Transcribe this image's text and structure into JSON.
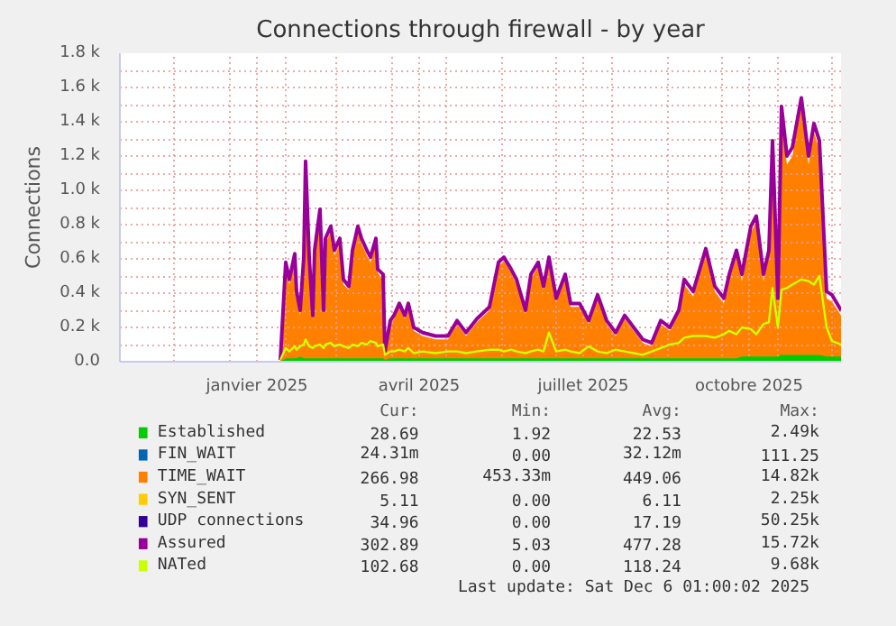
{
  "chart_data": {
    "type": "area",
    "title": "Connections through firewall - by year",
    "ylabel": "Connections",
    "grid": true,
    "legend": "bottom",
    "x": [
      "2025-01-29",
      "2025-02-01",
      "2025-02-03",
      "2025-02-06",
      "2025-02-07",
      "2025-02-09",
      "2025-02-11",
      "2025-02-12",
      "2025-02-14",
      "2025-02-16",
      "2025-02-17",
      "2025-02-20",
      "2025-02-22",
      "2025-02-23",
      "2025-02-26",
      "2025-02-28",
      "2025-03-03",
      "2025-03-05",
      "2025-03-08",
      "2025-03-10",
      "2025-03-13",
      "2025-03-15",
      "2025-03-18",
      "2025-03-20",
      "2025-03-23",
      "2025-03-24",
      "2025-03-27",
      "2025-03-28",
      "2025-03-31",
      "2025-04-02",
      "2025-04-05",
      "2025-04-08",
      "2025-04-10",
      "2025-04-13",
      "2025-04-18",
      "2025-04-25",
      "2025-05-02",
      "2025-05-07",
      "2025-05-12",
      "2025-05-18",
      "2025-05-25",
      "2025-05-30",
      "2025-06-02",
      "2025-06-06",
      "2025-06-09",
      "2025-06-14",
      "2025-06-17",
      "2025-06-21",
      "2025-06-24",
      "2025-06-27",
      "2025-07-01",
      "2025-07-06",
      "2025-07-09",
      "2025-07-14",
      "2025-07-19",
      "2025-07-24",
      "2025-07-29",
      "2025-08-03",
      "2025-08-08",
      "2025-08-13",
      "2025-08-18",
      "2025-08-23",
      "2025-08-28",
      "2025-09-02",
      "2025-09-07",
      "2025-09-10",
      "2025-09-15",
      "2025-09-22",
      "2025-09-27",
      "2025-10-02",
      "2025-10-05",
      "2025-10-09",
      "2025-10-12",
      "2025-10-17",
      "2025-10-20",
      "2025-10-24",
      "2025-10-27",
      "2025-10-29",
      "2025-11-01",
      "2025-11-03",
      "2025-11-06",
      "2025-11-09",
      "2025-11-14",
      "2025-11-18",
      "2025-11-21",
      "2025-11-24",
      "2025-11-28",
      "2025-12-01",
      "2025-12-06"
    ],
    "series": [
      {
        "name": "Established",
        "color": "#00cc00",
        "values": [
          0,
          20,
          20,
          20,
          20,
          30,
          20,
          20,
          20,
          20,
          20,
          20,
          20,
          20,
          20,
          20,
          20,
          20,
          20,
          20,
          20,
          20,
          20,
          20,
          20,
          20,
          20,
          10,
          20,
          20,
          20,
          20,
          20,
          20,
          20,
          20,
          20,
          20,
          20,
          20,
          20,
          20,
          20,
          20,
          20,
          20,
          20,
          20,
          20,
          20,
          20,
          20,
          20,
          20,
          20,
          20,
          20,
          20,
          20,
          20,
          20,
          20,
          20,
          20,
          20,
          20,
          20,
          20,
          20,
          20,
          20,
          20,
          30,
          30,
          30,
          30,
          30,
          30,
          30,
          40,
          40,
          40,
          40,
          40,
          40,
          40,
          30,
          30,
          30
        ]
      },
      {
        "name": "FIN_WAIT",
        "color": "#0066b3",
        "values": [
          null,
          null,
          null,
          null,
          null,
          null,
          null,
          null,
          null,
          null,
          null,
          null,
          null,
          null,
          null,
          null,
          null,
          null,
          null,
          null,
          null,
          null,
          null,
          null,
          null,
          null,
          null,
          null,
          null,
          null,
          null,
          null,
          null,
          null,
          null,
          null,
          null,
          null,
          null,
          null,
          null,
          null,
          null,
          null,
          null,
          null,
          null,
          null,
          null,
          null,
          null,
          null,
          null,
          null,
          null,
          null,
          null,
          null,
          null,
          null,
          null,
          null,
          null,
          null,
          null,
          null,
          null,
          null,
          null,
          null,
          null,
          null,
          null,
          null,
          null,
          null,
          null,
          null,
          null,
          null,
          null,
          null,
          null,
          null,
          null,
          null,
          null,
          null,
          null
        ]
      },
      {
        "name": "TIME_WAIT",
        "color": "#ff8000",
        "values": [
          0,
          560,
          450,
          600,
          380,
          270,
          590,
          1140,
          590,
          250,
          620,
          860,
          280,
          690,
          760,
          620,
          690,
          450,
          420,
          620,
          760,
          690,
          620,
          580,
          690,
          520,
          480,
          50,
          220,
          250,
          320,
          250,
          320,
          180,
          150,
          130,
          130,
          220,
          150,
          230,
          300,
          560,
          590,
          520,
          450,
          280,
          480,
          560,
          420,
          590,
          350,
          480,
          320,
          320,
          220,
          370,
          220,
          150,
          250,
          180,
          110,
          90,
          220,
          180,
          280,
          450,
          380,
          630,
          410,
          340,
          480,
          620,
          470,
          750,
          820,
          470,
          610,
          1250,
          340,
          1450,
          1150,
          1200,
          1500,
          1150,
          1340,
          1240,
          370,
          350,
          270
        ]
      },
      {
        "name": "SYN_SENT",
        "color": "#ffcc00",
        "values": [
          null,
          null,
          null,
          null,
          null,
          null,
          null,
          null,
          null,
          null,
          null,
          null,
          null,
          null,
          null,
          null,
          null,
          null,
          null,
          null,
          null,
          null,
          null,
          null,
          null,
          null,
          null,
          null,
          null,
          null,
          null,
          null,
          null,
          null,
          null,
          null,
          null,
          null,
          null,
          null,
          null,
          null,
          null,
          null,
          null,
          null,
          null,
          null,
          null,
          null,
          null,
          null,
          null,
          null,
          null,
          null,
          null,
          null,
          null,
          null,
          null,
          null,
          null,
          null,
          null,
          null,
          null,
          null,
          null,
          null,
          null,
          null,
          null,
          null,
          null,
          null,
          null,
          null,
          null,
          null,
          null,
          null,
          null,
          null,
          null,
          null,
          null,
          null,
          null
        ]
      },
      {
        "name": "UDP connections",
        "type": "line",
        "color": "#330099",
        "values": [
          null,
          null,
          null,
          null,
          null,
          null,
          null,
          null,
          null,
          null,
          null,
          null,
          null,
          null,
          null,
          null,
          null,
          null,
          null,
          null,
          null,
          null,
          null,
          null,
          null,
          null,
          null,
          null,
          null,
          null,
          null,
          null,
          null,
          null,
          null,
          null,
          null,
          null,
          null,
          null,
          null,
          null,
          null,
          null,
          null,
          null,
          null,
          null,
          null,
          null,
          null,
          null,
          null,
          null,
          null,
          null,
          null,
          null,
          null,
          null,
          null,
          null,
          null,
          null,
          null,
          null,
          null,
          null,
          null,
          null,
          null,
          null,
          null,
          null,
          null,
          null,
          null,
          null,
          null,
          null,
          null,
          null,
          null,
          null,
          null,
          null,
          null,
          null,
          null
        ]
      },
      {
        "name": "Assured",
        "type": "line",
        "color": "#990099",
        "values": [
          10,
          580,
          480,
          630,
          410,
          300,
          610,
          1170,
          610,
          270,
          650,
          890,
          300,
          720,
          790,
          650,
          720,
          480,
          440,
          650,
          790,
          720,
          650,
          610,
          720,
          540,
          510,
          60,
          240,
          270,
          340,
          270,
          340,
          200,
          170,
          150,
          150,
          240,
          170,
          250,
          320,
          580,
          610,
          540,
          480,
          300,
          510,
          580,
          440,
          610,
          370,
          510,
          340,
          340,
          240,
          390,
          240,
          170,
          270,
          200,
          130,
          110,
          240,
          200,
          300,
          480,
          410,
          660,
          440,
          370,
          510,
          650,
          510,
          790,
          850,
          510,
          650,
          1290,
          370,
          1490,
          1200,
          1250,
          1540,
          1200,
          1390,
          1290,
          410,
          390,
          300
        ]
      },
      {
        "name": "NATed",
        "type": "line",
        "color": "#ccff00",
        "values": [
          10,
          80,
          60,
          90,
          70,
          90,
          100,
          130,
          90,
          80,
          90,
          100,
          80,
          100,
          110,
          90,
          100,
          90,
          80,
          100,
          90,
          110,
          100,
          120,
          110,
          90,
          100,
          40,
          60,
          60,
          70,
          60,
          80,
          50,
          60,
          50,
          60,
          60,
          50,
          60,
          70,
          70,
          60,
          70,
          60,
          50,
          60,
          70,
          60,
          170,
          60,
          70,
          60,
          50,
          90,
          60,
          50,
          70,
          60,
          50,
          40,
          60,
          80,
          100,
          110,
          140,
          150,
          150,
          140,
          160,
          180,
          160,
          200,
          190,
          160,
          220,
          230,
          430,
          200,
          420,
          430,
          450,
          480,
          470,
          450,
          500,
          200,
          120,
          100
        ]
      }
    ],
    "xlim": [
      "2024-11-01",
      "2025-12-06"
    ],
    "xticks": [
      {
        "value": "2024-12-01",
        "label": null
      },
      {
        "value": "2025-01-01",
        "label": null
      },
      {
        "value": "2025-01-16",
        "label": "janvier 2025"
      },
      {
        "value": "2025-02-01",
        "label": null
      },
      {
        "value": "2025-03-01",
        "label": null
      },
      {
        "value": "2025-04-01",
        "label": null
      },
      {
        "value": "2025-04-16",
        "label": "avril 2025"
      },
      {
        "value": "2025-05-01",
        "label": null
      },
      {
        "value": "2025-06-01",
        "label": null
      },
      {
        "value": "2025-07-01",
        "label": null
      },
      {
        "value": "2025-07-16",
        "label": "juillet 2025"
      },
      {
        "value": "2025-08-01",
        "label": null
      },
      {
        "value": "2025-09-01",
        "label": null
      },
      {
        "value": "2025-10-01",
        "label": null
      },
      {
        "value": "2025-10-16",
        "label": "octobre 2025"
      },
      {
        "value": "2025-11-01",
        "label": null
      },
      {
        "value": "2025-12-01",
        "label": null
      }
    ],
    "ylim": [
      0,
      1800
    ],
    "yticks": [
      {
        "value": 0,
        "label": "0.0"
      },
      {
        "value": 100,
        "label": null
      },
      {
        "value": 200,
        "label": "0.2 k"
      },
      {
        "value": 300,
        "label": null
      },
      {
        "value": 400,
        "label": "0.4 k"
      },
      {
        "value": 500,
        "label": null
      },
      {
        "value": 600,
        "label": "0.6 k"
      },
      {
        "value": 700,
        "label": null
      },
      {
        "value": 800,
        "label": "0.8 k"
      },
      {
        "value": 900,
        "label": null
      },
      {
        "value": 1000,
        "label": "1.0 k"
      },
      {
        "value": 1100,
        "label": null
      },
      {
        "value": 1200,
        "label": "1.2 k"
      },
      {
        "value": 1300,
        "label": null
      },
      {
        "value": 1400,
        "label": "1.4 k"
      },
      {
        "value": 1500,
        "label": null
      },
      {
        "value": 1600,
        "label": "1.6 k"
      },
      {
        "value": 1700,
        "label": null
      },
      {
        "value": 1800,
        "label": "1.8 k"
      }
    ],
    "annotations": [
      "Cur:",
      "Min:",
      "Avg:",
      "Max:",
      "28.69",
      "1.92",
      "22.53",
      "2.49k",
      "24.31m",
      "0.00",
      "32.12m",
      "111.25",
      "266.98",
      "453.33m",
      "449.06",
      "14.82k",
      "5.11",
      "0.00",
      "6.11",
      "2.25k",
      "34.96",
      "0.00",
      "17.19",
      "50.25k",
      "302.89",
      "5.03",
      "477.28",
      "15.72k",
      "102.68",
      "0.00",
      "118.24",
      "9.68k",
      "Last update: Sat Dec  6 01:00:02 2025"
    ]
  }
}
